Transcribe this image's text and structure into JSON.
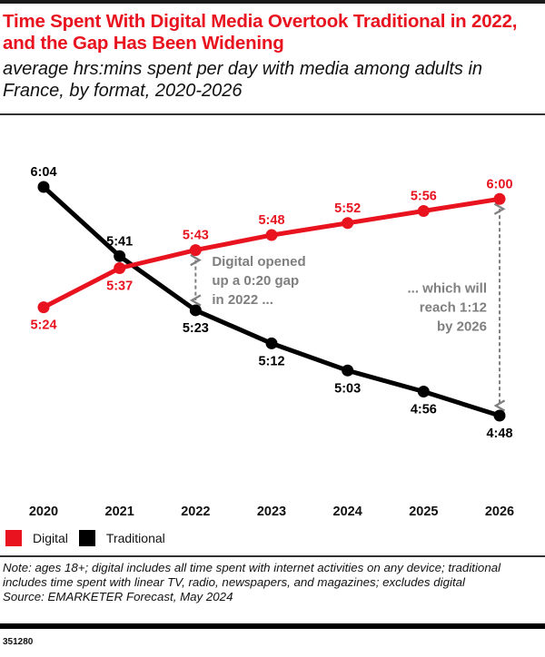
{
  "header": {
    "title": "Time Spent With Digital Media Overtook Traditional in 2022, and the Gap Has Been Widening",
    "subtitle": "average hrs:mins spent per day with media among adults in France, by format, 2020-2026"
  },
  "colors": {
    "digital": "#e8131f",
    "traditional": "#000000",
    "annotation": "#7f7f7f",
    "title": "#e8131f"
  },
  "chart_data": {
    "type": "line",
    "title": "Time Spent With Digital Media Overtook Traditional in 2022, and the Gap Has Been Widening",
    "subtitle": "average hrs:mins spent per day with media among adults in France, by format, 2020-2026",
    "xlabel": "",
    "ylabel": "",
    "x": [
      "2020",
      "2021",
      "2022",
      "2023",
      "2024",
      "2025",
      "2026"
    ],
    "y_unit": "minutes per day",
    "ylim": [
      288,
      364
    ],
    "grid": false,
    "legend_position": "bottom-left",
    "series": [
      {
        "name": "Digital",
        "color": "#e8131f",
        "values": [
          324,
          337,
          343,
          348,
          352,
          356,
          360
        ],
        "labels": [
          "5:24",
          "5:37",
          "5:43",
          "5:48",
          "5:52",
          "5:56",
          "6:00"
        ],
        "label_pos": [
          "below",
          "below",
          "above",
          "above",
          "above",
          "above",
          "above"
        ]
      },
      {
        "name": "Traditional",
        "color": "#000000",
        "values": [
          364,
          341,
          323,
          312,
          303,
          296,
          288
        ],
        "labels": [
          "6:04",
          "5:41",
          "5:23",
          "5:12",
          "5:03",
          "4:56",
          "4:48"
        ],
        "label_pos": [
          "above",
          "above",
          "below",
          "below",
          "below",
          "below",
          "below"
        ]
      }
    ],
    "annotations": [
      {
        "x": "2022",
        "from_series": "Digital",
        "to_series": "Traditional",
        "lines": [
          "Digital opened",
          "up a 0:20 gap",
          "in 2022 ..."
        ],
        "side": "right"
      },
      {
        "x": "2026",
        "from_series": "Digital",
        "to_series": "Traditional",
        "lines": [
          "... which will",
          "reach 1:12",
          "by 2026"
        ],
        "side": "left"
      }
    ]
  },
  "legend": {
    "items": [
      {
        "label": "Digital",
        "color": "#e8131f"
      },
      {
        "label": "Traditional",
        "color": "#000000"
      }
    ]
  },
  "footer": {
    "note": "Note: ages 18+; digital includes all time spent with internet activities on any device; traditional includes time spent with linear TV, radio, newspapers, and magazines; excludes digital",
    "source": "Source: EMARKETER Forecast, May 2024",
    "chart_id": "351280"
  }
}
